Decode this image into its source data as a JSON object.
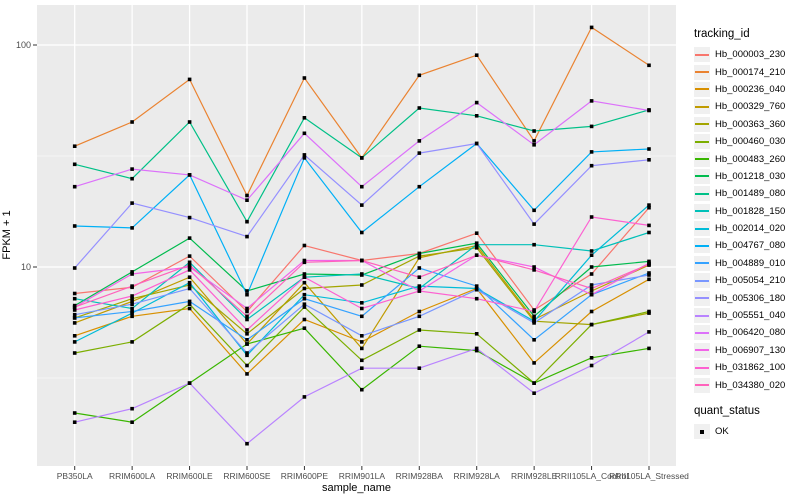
{
  "chart_data": {
    "type": "line",
    "title": "",
    "xlabel": "sample_name",
    "ylabel": "FPKM + 1",
    "y_scale": "log10",
    "ylim": [
      1.27,
      150
    ],
    "grid": true,
    "legend_position": "right",
    "marker": "black-square",
    "y_ticks": [
      {
        "label": "100",
        "value": 100
      },
      {
        "label": "10",
        "value": 10
      }
    ],
    "y_minor_breaks": [
      31.62,
      3.162
    ],
    "categories": [
      "PB350LA",
      "RRIM600LA",
      "RRIM600LE",
      "RRIM600SE",
      "RRIM600PE",
      "RRIM901LA",
      "RRIM928BA",
      "RRIM928LA",
      "RRIM928LE",
      "RRII105LA_Control",
      "RRII105LA_Stressed"
    ],
    "series": [
      {
        "tracking_id": "Hb_000003_230",
        "color": "#F8766D",
        "values": [
          7.6,
          8.1,
          11.2,
          6.3,
          12.5,
          10.7,
          11.5,
          14.2,
          6.4,
          9.3,
          18.5
        ]
      },
      {
        "tracking_id": "Hb_000174_210",
        "color": "#EA8331",
        "values": [
          35,
          45,
          70,
          21,
          71,
          31,
          73,
          90,
          37,
          120,
          81
        ]
      },
      {
        "tracking_id": "Hb_000236_040",
        "color": "#D89000",
        "values": [
          4.9,
          6.0,
          6.5,
          3.3,
          5.8,
          4.6,
          6.3,
          8.0,
          3.7,
          6.3,
          8.8
        ]
      },
      {
        "tracking_id": "Hb_000329_760",
        "color": "#C09B00",
        "values": [
          5.6,
          7.0,
          9.0,
          4.5,
          8.5,
          4.3,
          11.0,
          12.5,
          5.8,
          7.8,
          10.2
        ]
      },
      {
        "tracking_id": "Hb_000363_360",
        "color": "#A3A500",
        "values": [
          5.9,
          7.2,
          8.3,
          5.0,
          8.0,
          8.3,
          11.2,
          12.2,
          5.7,
          5.5,
          6.2
        ]
      },
      {
        "tracking_id": "Hb_000460_030",
        "color": "#7CAE00",
        "values": [
          4.1,
          4.6,
          6.8,
          3.6,
          6.6,
          3.8,
          5.2,
          5.0,
          3.0,
          5.5,
          6.3
        ]
      },
      {
        "tracking_id": "Hb_000483_260",
        "color": "#39B600",
        "values": [
          2.2,
          2.0,
          3.0,
          4.5,
          5.3,
          2.8,
          4.4,
          4.2,
          3.0,
          3.9,
          4.3
        ]
      },
      {
        "tracking_id": "Hb_001218_030",
        "color": "#00BB4E",
        "values": [
          6.7,
          9.5,
          13.5,
          7.8,
          9.3,
          9.2,
          11.5,
          12.8,
          6.0,
          10.0,
          10.6
        ]
      },
      {
        "tracking_id": "Hb_001489_080",
        "color": "#00C087",
        "values": [
          29,
          25,
          45,
          16,
          47,
          31,
          52,
          48,
          41,
          43,
          51
        ]
      },
      {
        "tracking_id": "Hb_001828_150",
        "color": "#00C0B8",
        "values": [
          7.2,
          6.5,
          10.5,
          5.8,
          9.0,
          9.3,
          8.0,
          12.6,
          12.6,
          11.8,
          14.3
        ]
      },
      {
        "tracking_id": "Hb_002014_020",
        "color": "#00BCD8",
        "values": [
          4.6,
          6.2,
          8.5,
          4.0,
          7.5,
          6.9,
          8.2,
          8.0,
          5.7,
          11.3,
          19.0
        ]
      },
      {
        "tracking_id": "Hb_004767_080",
        "color": "#00B0F6",
        "values": [
          15.3,
          15.0,
          26.0,
          7.5,
          31.0,
          14.3,
          23.0,
          36.0,
          18.0,
          33.0,
          34.0
        ]
      },
      {
        "tracking_id": "Hb_004889_010",
        "color": "#35A2FF",
        "values": [
          5.9,
          6.3,
          7.0,
          4.7,
          7.2,
          6.0,
          9.9,
          8.2,
          4.7,
          7.5,
          9.4
        ]
      },
      {
        "tracking_id": "Hb_005054_210",
        "color": "#7997FF",
        "values": [
          6.1,
          6.8,
          8.0,
          4.1,
          6.8,
          4.9,
          6.0,
          7.9,
          5.6,
          8.3,
          9.2
        ]
      },
      {
        "tracking_id": "Hb_005306_180",
        "color": "#9590FF",
        "values": [
          9.9,
          19.4,
          16.7,
          13.7,
          32.0,
          19.0,
          32.6,
          36.0,
          15.6,
          28.6,
          30.4
        ]
      },
      {
        "tracking_id": "Hb_005551_040",
        "color": "#B983FF",
        "values": [
          2.0,
          2.3,
          3.0,
          1.6,
          2.6,
          3.5,
          3.5,
          4.3,
          2.7,
          3.6,
          5.1
        ]
      },
      {
        "tracking_id": "Hb_006420_080",
        "color": "#DC71FA",
        "values": [
          23,
          27.6,
          26,
          20,
          40,
          23,
          37,
          55,
          35.5,
          56,
          50.7
        ]
      },
      {
        "tracking_id": "Hb_006907_130",
        "color": "#F265E8",
        "values": [
          6.6,
          9.3,
          10.0,
          6.5,
          10.7,
          10.7,
          7.8,
          11.3,
          10.0,
          7.5,
          10.4
        ]
      },
      {
        "tracking_id": "Hb_031862_100",
        "color": "#FD61D1",
        "values": [
          6.4,
          7.4,
          9.7,
          5.2,
          9.0,
          6.5,
          7.8,
          7.2,
          6.3,
          16.8,
          15.4
        ]
      },
      {
        "tracking_id": "Hb_034380_020",
        "color": "#FF62BC",
        "values": [
          6.6,
          8.2,
          10.2,
          6.0,
          10.5,
          10.7,
          9.0,
          11.3,
          9.7,
          8.0,
          10.3
        ]
      }
    ],
    "legend": {
      "tracking_title": "tracking_id",
      "quant_title": "quant_status",
      "quant_items": [
        {
          "label": "OK",
          "marker": "black-square"
        }
      ]
    },
    "colors": {
      "panel_background": "#EBEBEB",
      "gridline": "#FFFFFF",
      "tick_text": "#4D4D4D",
      "axis_text": "#000000",
      "point": "#000000",
      "legend_key_background": "#F0F0F0"
    }
  }
}
